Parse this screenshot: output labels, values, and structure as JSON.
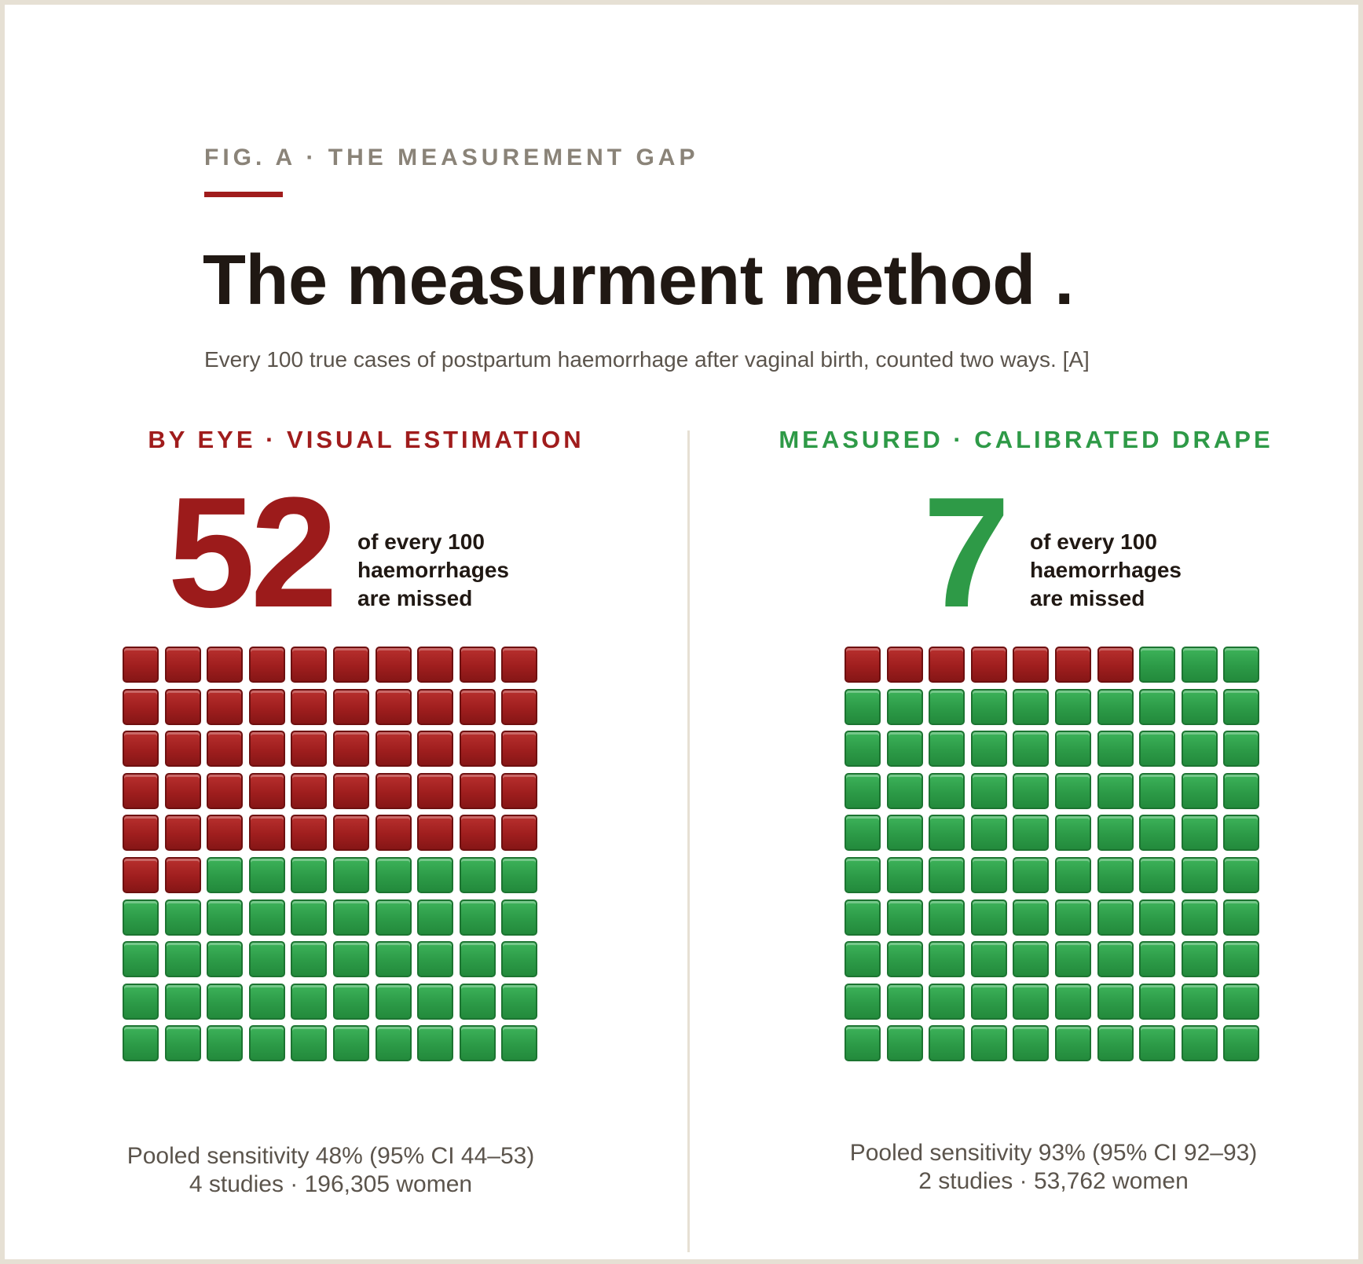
{
  "header": {
    "eyebrow": "FIG. A · THE MEASUREMENT GAP",
    "title": "The measurment method .",
    "subtitle": "Every 100 true cases of postpartum haemorrhage after vaginal birth, counted two ways. [A]"
  },
  "colors": {
    "missed": "#9f1e1e",
    "detected": "#2c9a47",
    "accent_rule": "#a01c1c"
  },
  "chart_data": [
    {
      "type": "waffle",
      "label": "BY EYE · VISUAL ESTIMATION",
      "big_number": "52",
      "caption": [
        "of every 100",
        "haemorrhages",
        "are missed"
      ],
      "total": 100,
      "grid": [
        10,
        10
      ],
      "categories": [
        "missed",
        "detected"
      ],
      "values": [
        52,
        48
      ],
      "footer": [
        "Pooled sensitivity 48% (95% CI 44–53)",
        "4 studies · 196,305 women"
      ]
    },
    {
      "type": "waffle",
      "label": "MEASURED · CALIBRATED DRAPE",
      "big_number": "7",
      "caption": [
        "of every 100",
        "haemorrhages",
        "are missed"
      ],
      "total": 100,
      "grid": [
        10,
        10
      ],
      "categories": [
        "missed",
        "detected"
      ],
      "values": [
        7,
        93
      ],
      "footer": [
        "Pooled sensitivity 93% (95% CI 92–93)",
        "2 studies · 53,762 women"
      ]
    }
  ]
}
